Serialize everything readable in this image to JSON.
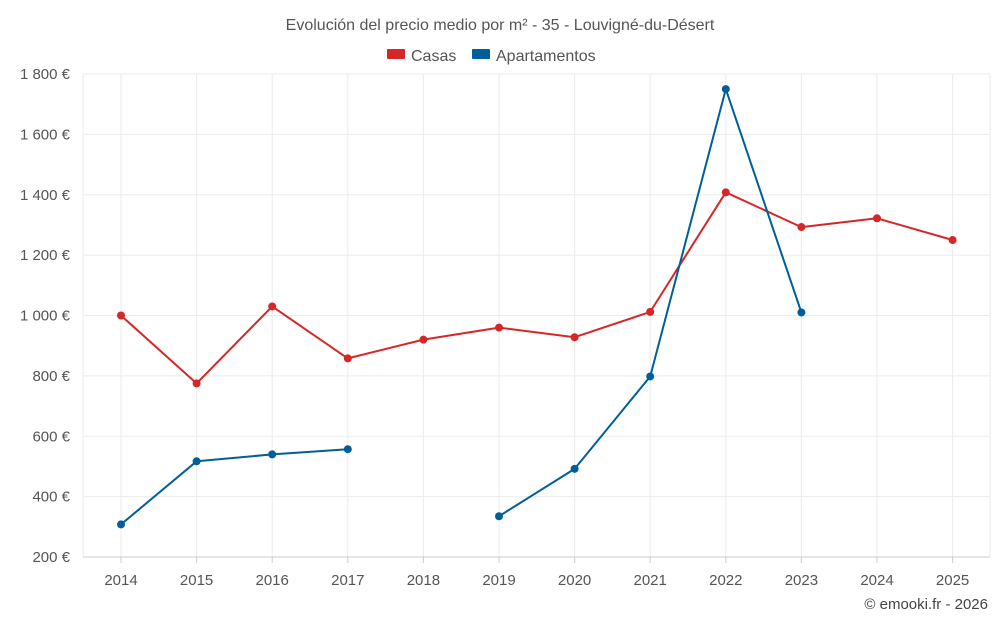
{
  "chart_data": {
    "type": "line",
    "title": "Evolución del precio medio por m² - 35 - Louvigné-du-Désert",
    "xlabel": "",
    "ylabel": "",
    "categories": [
      "2014",
      "2015",
      "2016",
      "2017",
      "2018",
      "2019",
      "2020",
      "2021",
      "2022",
      "2023",
      "2024",
      "2025"
    ],
    "ylim": [
      200,
      1800
    ],
    "yticks": [
      200,
      400,
      600,
      800,
      1000,
      1200,
      1400,
      1600,
      1800
    ],
    "ytick_labels": [
      "200 €",
      "400 €",
      "600 €",
      "800 €",
      "1 000 €",
      "1 200 €",
      "1 400 €",
      "1 600 €",
      "1 800 €"
    ],
    "grid": true,
    "legend_position": "top-center",
    "series": [
      {
        "name": "Casas",
        "color": "#d62728",
        "values": [
          1000,
          775,
          1030,
          858,
          920,
          960,
          928,
          1012,
          1408,
          1293,
          1322,
          1250
        ]
      },
      {
        "name": "Apartamentos",
        "color": "#005f99",
        "values": [
          308,
          517,
          540,
          557,
          null,
          335,
          492,
          798,
          1750,
          1010,
          null,
          null
        ]
      }
    ],
    "credit": "© emooki.fr - 2026"
  }
}
